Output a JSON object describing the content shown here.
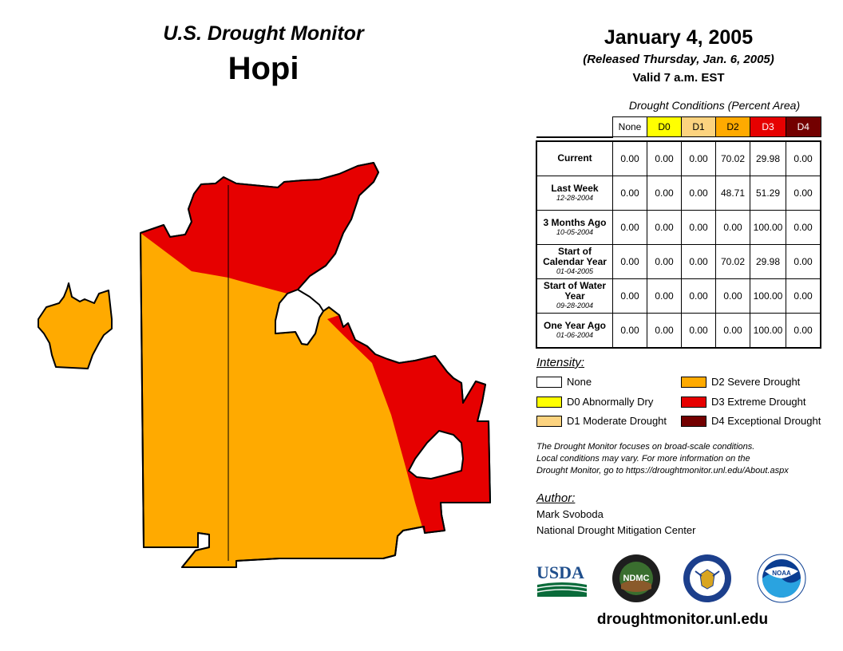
{
  "header": {
    "product_title": "U.S. Drought Monitor",
    "region_name": "Hopi",
    "date": "January 4, 2005",
    "released": "(Released Thursday, Jan. 6, 2005)",
    "valid": "Valid 7 a.m. EST"
  },
  "table": {
    "caption": "Drought Conditions (Percent Area)",
    "columns": [
      "None",
      "D0",
      "D1",
      "D2",
      "D3",
      "D4"
    ],
    "rows": [
      {
        "label": "Current",
        "date": "",
        "values": [
          "0.00",
          "0.00",
          "0.00",
          "70.02",
          "29.98",
          "0.00"
        ]
      },
      {
        "label": "Last Week",
        "date": "12-28-2004",
        "values": [
          "0.00",
          "0.00",
          "0.00",
          "48.71",
          "51.29",
          "0.00"
        ]
      },
      {
        "label": "3 Months Ago",
        "date": "10-05-2004",
        "values": [
          "0.00",
          "0.00",
          "0.00",
          "0.00",
          "100.00",
          "0.00"
        ]
      },
      {
        "label": "Start of Calendar Year",
        "date": "01-04-2005",
        "values": [
          "0.00",
          "0.00",
          "0.00",
          "70.02",
          "29.98",
          "0.00"
        ]
      },
      {
        "label": "Start of Water Year",
        "date": "09-28-2004",
        "values": [
          "0.00",
          "0.00",
          "0.00",
          "0.00",
          "100.00",
          "0.00"
        ]
      },
      {
        "label": "One Year Ago",
        "date": "01-06-2004",
        "values": [
          "0.00",
          "0.00",
          "0.00",
          "0.00",
          "100.00",
          "0.00"
        ]
      }
    ]
  },
  "legend": {
    "title": "Intensity:",
    "items": [
      {
        "label": "None",
        "color": "#ffffff"
      },
      {
        "label": "D0 Abnormally Dry",
        "color": "#ffff00"
      },
      {
        "label": "D1 Moderate Drought",
        "color": "#fcd37f"
      },
      {
        "label": "D2 Severe Drought",
        "color": "#ffaa00"
      },
      {
        "label": "D3 Extreme Drought",
        "color": "#e60000"
      },
      {
        "label": "D4 Exceptional Drought",
        "color": "#730000"
      }
    ]
  },
  "note": {
    "line1": "The Drought Monitor focuses on broad-scale conditions.",
    "line2": "Local conditions may vary. For more information on the",
    "line3": "Drought Monitor, go to https://droughtmonitor.unl.edu/About.aspx"
  },
  "author": {
    "title": "Author:",
    "name": "Mark Svoboda",
    "org": "National Drought Mitigation Center"
  },
  "logos": {
    "usda": "USDA",
    "ndmc": "NDMC",
    "noaa": "NOAA"
  },
  "website": "droughtmonitor.unl.edu",
  "map": {
    "d2_color": "#ffaa00",
    "d3_color": "#e60000"
  }
}
